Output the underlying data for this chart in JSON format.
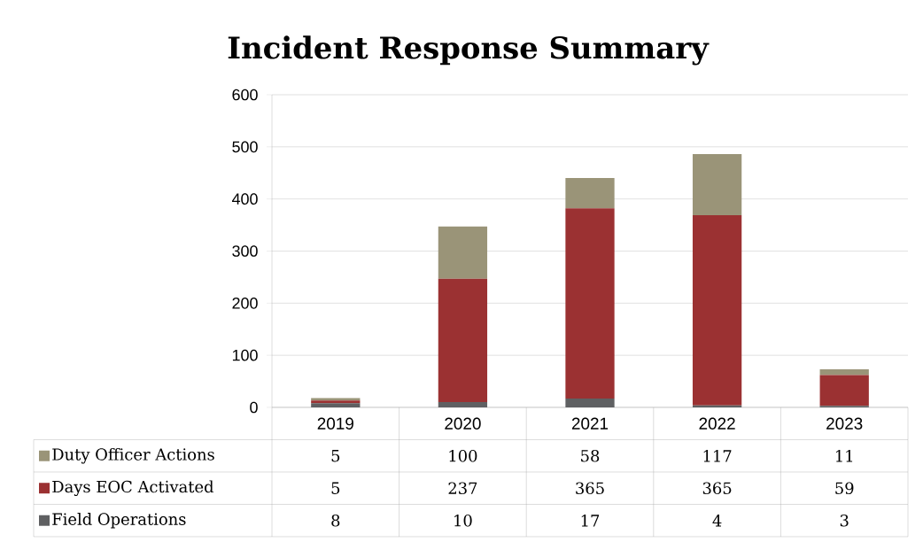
{
  "chart_data": {
    "type": "bar",
    "stacked": true,
    "title": "Incident Response Summary",
    "categories": [
      "2019",
      "2020",
      "2021",
      "2022",
      "2023"
    ],
    "series": [
      {
        "name": "Field Operations",
        "color": "#5f6062",
        "values": [
          8,
          10,
          17,
          4,
          3
        ]
      },
      {
        "name": "Days EOC Activated",
        "color": "#9b3132",
        "values": [
          5,
          237,
          365,
          365,
          59
        ]
      },
      {
        "name": "Duty Officer Actions",
        "color": "#9a9478",
        "values": [
          5,
          100,
          58,
          117,
          11
        ]
      }
    ],
    "ylim": [
      0,
      600
    ],
    "yticks": [
      0,
      100,
      200,
      300,
      400,
      500,
      600
    ],
    "grid": "y",
    "legend": "bottom",
    "data_labels": true
  }
}
